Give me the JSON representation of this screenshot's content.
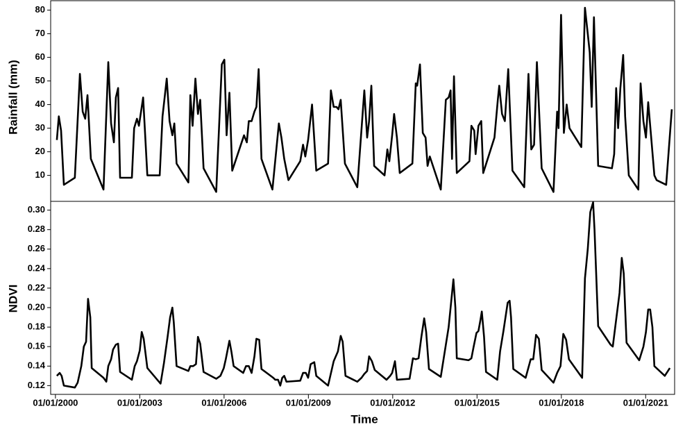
{
  "chart_data": [
    {
      "type": "line",
      "ylabel": "Rainfall (mm)",
      "color": "#000000",
      "xlim": [
        1999.83,
        2022.03
      ],
      "ylim": [
        -1,
        84
      ],
      "yticks": [
        10,
        20,
        30,
        40,
        50,
        60,
        70,
        80
      ],
      "x": [
        2000.05,
        2000.12,
        2000.2,
        2000.3,
        2000.69,
        2000.87,
        2000.97,
        2001.06,
        2001.14,
        2001.26,
        2001.71,
        2001.88,
        2001.98,
        2002.08,
        2002.15,
        2002.23,
        2002.3,
        2002.72,
        2002.8,
        2002.9,
        2002.97,
        2003.12,
        2003.27,
        2003.71,
        2003.81,
        2003.96,
        2004.06,
        2004.16,
        2004.23,
        2004.31,
        2004.73,
        2004.8,
        2004.88,
        2004.98,
        2005.07,
        2005.15,
        2005.27,
        2005.72,
        2005.92,
        2006.01,
        2006.09,
        2006.19,
        2006.29,
        2006.71,
        2006.81,
        2006.88,
        2006.98,
        2007.08,
        2007.15,
        2007.23,
        2007.33,
        2007.72,
        2007.95,
        2008.04,
        2008.14,
        2008.29,
        2008.71,
        2008.81,
        2008.89,
        2008.99,
        2009.13,
        2009.28,
        2009.7,
        2009.8,
        2009.9,
        2010.0,
        2010.07,
        2010.15,
        2010.3,
        2010.74,
        2010.99,
        2011.09,
        2011.16,
        2011.24,
        2011.34,
        2011.71,
        2011.81,
        2011.88,
        2011.98,
        2012.05,
        2012.15,
        2012.25,
        2012.7,
        2012.82,
        2012.87,
        2012.97,
        2013.07,
        2013.17,
        2013.24,
        2013.32,
        2013.71,
        2013.89,
        2013.99,
        2014.06,
        2014.11,
        2014.18,
        2014.28,
        2014.73,
        2014.8,
        2014.9,
        2014.95,
        2015.05,
        2015.15,
        2015.22,
        2015.62,
        2015.74,
        2015.79,
        2015.89,
        2015.99,
        2016.11,
        2016.26,
        2016.68,
        2016.83,
        2016.93,
        2017.03,
        2017.13,
        2017.3,
        2017.72,
        2017.85,
        2017.9,
        2017.99,
        2018.09,
        2018.19,
        2018.29,
        2018.71,
        2018.84,
        2018.94,
        2019.01,
        2019.08,
        2019.16,
        2019.31,
        2019.8,
        2019.88,
        2019.95,
        2020.02,
        2020.1,
        2020.2,
        2020.27,
        2020.4,
        2020.74,
        2020.82,
        2020.92,
        2021.01,
        2021.09,
        2021.19,
        2021.31,
        2021.39,
        2021.73,
        2021.93
      ],
      "values": [
        25,
        35,
        29,
        6,
        9,
        53,
        37,
        34,
        44,
        17,
        4,
        58,
        32,
        24,
        43,
        47,
        9,
        9,
        30,
        34,
        31,
        43,
        10,
        10,
        35,
        51,
        33,
        27,
        32,
        15,
        7,
        44,
        31,
        51,
        36,
        42,
        13,
        3,
        57,
        59,
        27,
        45,
        12,
        27,
        24,
        33,
        33,
        37,
        39,
        55,
        17,
        4,
        32,
        26,
        17,
        8,
        16,
        23,
        18,
        25,
        40,
        12,
        15,
        46,
        39,
        39,
        38,
        42,
        15,
        5,
        46,
        26,
        33,
        48,
        14,
        10,
        21,
        16,
        27,
        36,
        26,
        11,
        15,
        49,
        48,
        57,
        28,
        26,
        14,
        18,
        4,
        42,
        43,
        46,
        17,
        52,
        11,
        16,
        31,
        29,
        19,
        31,
        33,
        11,
        26,
        42,
        48,
        36,
        33,
        55,
        12,
        5,
        53,
        21,
        23,
        58,
        13,
        3,
        37,
        30,
        78,
        28,
        40,
        30,
        22,
        81,
        70,
        62,
        39,
        77,
        14,
        13,
        19,
        47,
        30,
        47,
        61,
        35,
        10,
        4,
        49,
        33,
        26,
        41,
        27,
        10,
        8,
        6,
        38
      ]
    },
    {
      "type": "line",
      "ylabel": "NDVI",
      "xlabel": "Time",
      "color": "#000000",
      "xlim": [
        1999.83,
        2022.03
      ],
      "ylim": [
        0.111,
        0.309
      ],
      "yticks": [
        0.12,
        0.14,
        0.16,
        0.18,
        {
          "value": 0.2,
          "label": "0.20"
        },
        0.22,
        0.24,
        0.26,
        0.28,
        {
          "value": 0.3,
          "label": "0.30"
        }
      ],
      "xticks": [
        {
          "value": 2000,
          "label": "01/01/2000"
        },
        {
          "value": 2003,
          "label": "01/01/2003"
        },
        {
          "value": 2006,
          "label": "01/01/2006"
        },
        {
          "value": 2009,
          "label": "01/01/2009"
        },
        {
          "value": 2012,
          "label": "01/01/2012"
        },
        {
          "value": 2015,
          "label": "01/01/2015"
        },
        {
          "value": 2018,
          "label": "01/01/2018"
        },
        {
          "value": 2021,
          "label": "01/01/2021"
        }
      ],
      "x": [
        2000.05,
        2000.15,
        2000.22,
        2000.3,
        2000.69,
        2000.79,
        2000.92,
        2001.01,
        2001.09,
        2001.16,
        2001.24,
        2001.29,
        2001.71,
        2001.81,
        2001.88,
        2001.98,
        2002.05,
        2002.15,
        2002.23,
        2002.3,
        2002.72,
        2002.82,
        2002.9,
        2003.0,
        2003.07,
        2003.14,
        2003.27,
        2003.74,
        2003.86,
        2003.99,
        2004.08,
        2004.16,
        2004.21,
        2004.31,
        2004.73,
        2004.8,
        2004.9,
        2005.0,
        2005.07,
        2005.15,
        2005.27,
        2005.72,
        2005.87,
        2005.99,
        2006.06,
        2006.19,
        2006.26,
        2006.34,
        2006.68,
        2006.78,
        2006.88,
        2006.98,
        2007.08,
        2007.15,
        2007.25,
        2007.33,
        2007.75,
        2007.82,
        2007.92,
        2008.0,
        2008.07,
        2008.14,
        2008.22,
        2008.71,
        2008.81,
        2008.91,
        2008.99,
        2009.08,
        2009.21,
        2009.28,
        2009.7,
        2009.9,
        2010.05,
        2010.15,
        2010.22,
        2010.32,
        2010.74,
        2010.89,
        2010.99,
        2011.09,
        2011.16,
        2011.26,
        2011.36,
        2011.78,
        2011.91,
        2011.98,
        2012.08,
        2012.15,
        2012.6,
        2012.72,
        2012.82,
        2012.92,
        2013.02,
        2013.12,
        2013.19,
        2013.29,
        2013.71,
        2013.99,
        2014.16,
        2014.23,
        2014.28,
        2014.7,
        2014.8,
        2014.88,
        2014.98,
        2015.05,
        2015.12,
        2015.17,
        2015.25,
        2015.32,
        2015.72,
        2015.82,
        2015.94,
        2016.09,
        2016.16,
        2016.21,
        2016.29,
        2016.73,
        2016.91,
        2017.0,
        2017.1,
        2017.2,
        2017.3,
        2017.72,
        2017.85,
        2017.97,
        2018.07,
        2018.17,
        2018.27,
        2018.74,
        2018.84,
        2018.94,
        2019.03,
        2019.13,
        2019.18,
        2019.31,
        2019.75,
        2019.83,
        2019.93,
        2020.07,
        2020.15,
        2020.22,
        2020.32,
        2020.77,
        2020.92,
        2021.01,
        2021.09,
        2021.16,
        2021.24,
        2021.31,
        2021.68,
        2021.86
      ],
      "values": [
        0.13,
        0.133,
        0.13,
        0.12,
        0.118,
        0.123,
        0.14,
        0.16,
        0.165,
        0.209,
        0.19,
        0.138,
        0.128,
        0.124,
        0.14,
        0.147,
        0.157,
        0.162,
        0.163,
        0.134,
        0.126,
        0.14,
        0.145,
        0.156,
        0.175,
        0.168,
        0.138,
        0.122,
        0.143,
        0.17,
        0.19,
        0.2,
        0.185,
        0.14,
        0.135,
        0.14,
        0.14,
        0.142,
        0.17,
        0.163,
        0.134,
        0.127,
        0.13,
        0.138,
        0.147,
        0.166,
        0.155,
        0.14,
        0.133,
        0.14,
        0.14,
        0.133,
        0.15,
        0.168,
        0.167,
        0.137,
        0.128,
        0.126,
        0.126,
        0.12,
        0.128,
        0.13,
        0.124,
        0.125,
        0.133,
        0.133,
        0.128,
        0.142,
        0.144,
        0.13,
        0.12,
        0.145,
        0.155,
        0.171,
        0.165,
        0.13,
        0.124,
        0.128,
        0.132,
        0.135,
        0.15,
        0.145,
        0.136,
        0.126,
        0.13,
        0.133,
        0.145,
        0.126,
        0.127,
        0.148,
        0.147,
        0.148,
        0.17,
        0.189,
        0.175,
        0.137,
        0.129,
        0.18,
        0.229,
        0.2,
        0.148,
        0.146,
        0.148,
        0.16,
        0.174,
        0.176,
        0.187,
        0.196,
        0.17,
        0.134,
        0.126,
        0.155,
        0.176,
        0.205,
        0.207,
        0.19,
        0.137,
        0.128,
        0.147,
        0.147,
        0.172,
        0.168,
        0.136,
        0.123,
        0.133,
        0.14,
        0.173,
        0.167,
        0.147,
        0.128,
        0.23,
        0.26,
        0.298,
        0.308,
        0.28,
        0.181,
        0.162,
        0.16,
        0.183,
        0.215,
        0.251,
        0.235,
        0.164,
        0.146,
        0.16,
        0.175,
        0.198,
        0.198,
        0.18,
        0.14,
        0.13,
        0.138
      ]
    }
  ]
}
